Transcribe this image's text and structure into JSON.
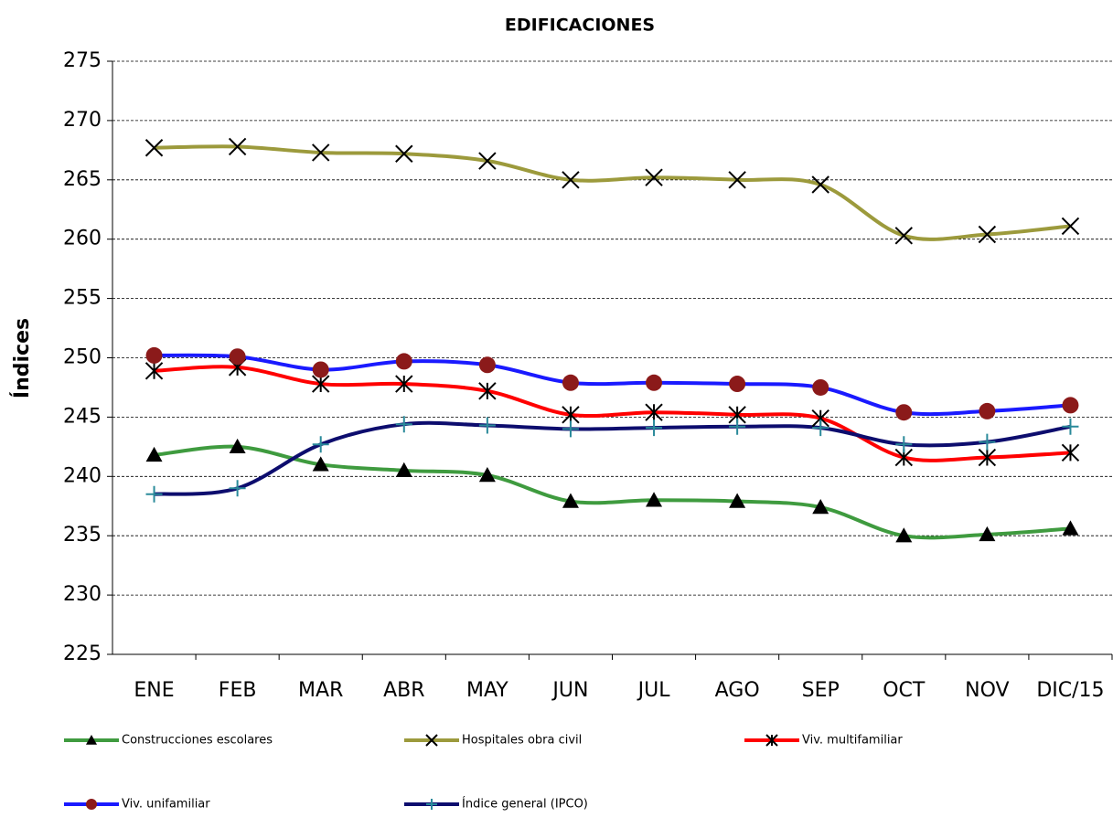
{
  "chart_data": {
    "type": "line",
    "title": "EDIFICACIONES",
    "y_label": "Índices",
    "categories": [
      "ENE",
      "FEB",
      "MAR",
      "ABR",
      "MAY",
      "JUN",
      "JUL",
      "AGO",
      "SEP",
      "OCT",
      "NOV",
      "DIC/15"
    ],
    "ylim": [
      225,
      275
    ],
    "yticks": [
      225,
      230,
      235,
      240,
      245,
      250,
      255,
      260,
      265,
      270,
      275
    ],
    "grid": true,
    "series": [
      {
        "name": "Construcciones escolares",
        "color": "#3f9b3f",
        "marker": "triangle",
        "marker_color": "#000000",
        "values": [
          241.8,
          242.5,
          241.0,
          240.5,
          240.1,
          237.9,
          238.0,
          237.9,
          237.4,
          235.0,
          235.1,
          235.6
        ]
      },
      {
        "name": "Hospitales obra civil",
        "color": "#9c9a3c",
        "marker": "x",
        "marker_color": "#000000",
        "values": [
          267.7,
          267.8,
          267.3,
          267.2,
          266.6,
          265.0,
          265.2,
          265.0,
          264.6,
          260.3,
          260.4,
          261.1
        ]
      },
      {
        "name": "Viv. multifamiliar",
        "color": "#ff0000",
        "marker": "asterisk",
        "marker_color": "#000000",
        "values": [
          248.9,
          249.2,
          247.8,
          247.8,
          247.2,
          245.2,
          245.4,
          245.2,
          244.9,
          241.6,
          241.6,
          242.0
        ]
      },
      {
        "name": "Viv. unifamiliar",
        "color": "#1a1aff",
        "marker": "circle",
        "marker_color": "#8b1a1a",
        "values": [
          250.2,
          250.1,
          249.0,
          249.7,
          249.4,
          247.9,
          247.9,
          247.8,
          247.5,
          245.4,
          245.5,
          246.0
        ]
      },
      {
        "name": "Índice general (IPCO)",
        "color": "#0d0d6e",
        "marker": "plus",
        "marker_color": "#2a8a9a",
        "values": [
          238.5,
          239.0,
          242.7,
          244.4,
          244.3,
          244.0,
          244.1,
          244.2,
          244.1,
          242.7,
          242.9,
          244.2
        ]
      }
    ]
  }
}
